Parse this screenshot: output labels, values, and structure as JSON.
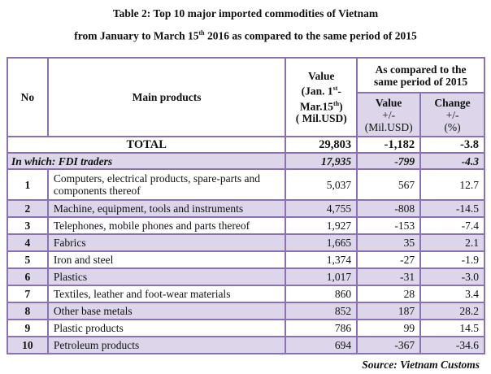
{
  "title": {
    "line1": "Table 2: Top 10 major imported commodities of Vietnam",
    "line2_pre": "from January to March 15",
    "line2_sup": "th",
    "line2_post": " 2016 as compared to the same period of 2015"
  },
  "headers": {
    "no": "No",
    "product": "Main products",
    "value_l1": "Value",
    "value_l2_pre": "(Jan. 1",
    "value_l2_sup": "st",
    "value_l2_post": "-",
    "value_l3_pre": "Mar.15",
    "value_l3_sup": "th",
    "value_l3_post": ")",
    "value_l4": "( Mil.USD)",
    "compare": "As compared to the same period of 2015",
    "change_value_l1": "Value",
    "change_value_l2": "+/-",
    "change_value_l3": "(Mil.USD)",
    "change_pct_l1": "Change",
    "change_pct_l2": "+/-",
    "change_pct_l3": "(%)"
  },
  "total": {
    "label": "TOTAL",
    "value": "29,803",
    "diff": "-1,182",
    "pct": "-3.8"
  },
  "fdi": {
    "label": "In which: FDI traders",
    "value": "17,935",
    "diff": "-799",
    "pct": "-4.3"
  },
  "rows": [
    {
      "no": "1",
      "product": "Computers, electrical products, spare-parts and  components thereof",
      "value": "5,037",
      "diff": "567",
      "pct": "12.7"
    },
    {
      "no": "2",
      "product": "Machine, equipment, tools and instruments",
      "value": "4,755",
      "diff": "-808",
      "pct": "-14.5"
    },
    {
      "no": "3",
      "product": "Telephones, mobile phones and  parts thereof",
      "value": "1,927",
      "diff": "-153",
      "pct": "-7.4"
    },
    {
      "no": "4",
      "product": "Fabrics",
      "value": "1,665",
      "diff": "35",
      "pct": "2.1"
    },
    {
      "no": "5",
      "product": "Iron and steel",
      "value": "1,374",
      "diff": "-27",
      "pct": "-1.9"
    },
    {
      "no": "6",
      "product": "Plastics",
      "value": "1,017",
      "diff": "-31",
      "pct": "-3.0"
    },
    {
      "no": "7",
      "product": "Textiles, leather and foot-wear materials",
      "value": "860",
      "diff": "28",
      "pct": "3.4"
    },
    {
      "no": "8",
      "product": "Other base metals",
      "value": "852",
      "diff": "187",
      "pct": "28.2"
    },
    {
      "no": "9",
      "product": "Plastic products",
      "value": "786",
      "diff": "99",
      "pct": "14.5"
    },
    {
      "no": "10",
      "product": "Petroleum products",
      "value": "694",
      "diff": "-367",
      "pct": "-34.6"
    }
  ],
  "source": "Source: Vietnam Customs",
  "colors": {
    "border": "#8a72b0",
    "shade": "#ddd6ea"
  }
}
